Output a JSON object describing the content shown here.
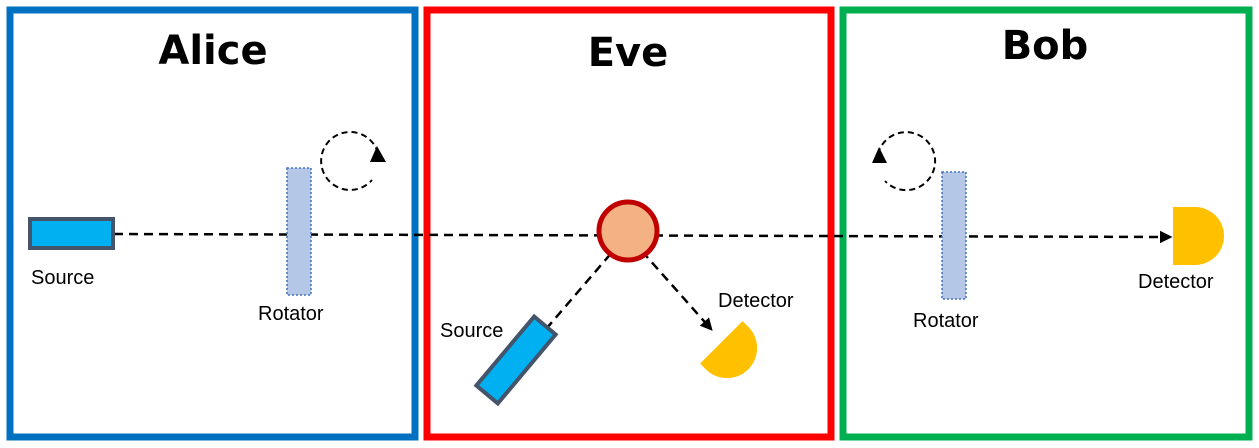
{
  "alice": {
    "title": "Alice",
    "source_label": "Source",
    "rotator_label": "Rotator",
    "border_color": "#0070C0"
  },
  "eve": {
    "title": "Eve",
    "source_label": "Source",
    "detector_label": "Detector",
    "border_color": "#FF0000"
  },
  "bob": {
    "title": "Bob",
    "rotator_label": "Rotator",
    "detector_label": "Detector",
    "border_color": "#00B050"
  },
  "colors": {
    "source_fill": "#00B0F0",
    "source_border": "#44546A",
    "rotator_fill": "#B4C7E7",
    "rotator_border": "#4472C4",
    "detector_fill": "#FFC000",
    "splitter_fill": "#F4B183",
    "splitter_border": "#C00000",
    "beam": "#000000"
  }
}
